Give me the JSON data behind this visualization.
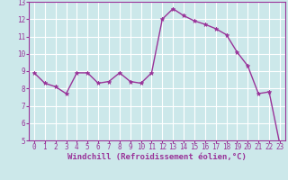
{
  "x": [
    0,
    1,
    2,
    3,
    4,
    5,
    6,
    7,
    8,
    9,
    10,
    11,
    12,
    13,
    14,
    15,
    16,
    17,
    18,
    19,
    20,
    21,
    22,
    23
  ],
  "y": [
    8.9,
    8.3,
    8.1,
    7.7,
    8.9,
    8.9,
    8.3,
    8.4,
    8.9,
    8.4,
    8.3,
    8.9,
    12.0,
    12.6,
    12.2,
    11.9,
    11.7,
    11.45,
    11.1,
    10.1,
    9.3,
    7.7,
    7.8,
    4.8
  ],
  "line_color": "#993399",
  "marker": "*",
  "marker_size": 3.5,
  "bg_color": "#cce8ea",
  "grid_color": "#b0d8dc",
  "xlabel": "Windchill (Refroidissement éolien,°C)",
  "ylim": [
    5,
    13
  ],
  "xlim": [
    -0.5,
    23.5
  ],
  "yticks": [
    5,
    6,
    7,
    8,
    9,
    10,
    11,
    12,
    13
  ],
  "xticks": [
    0,
    1,
    2,
    3,
    4,
    5,
    6,
    7,
    8,
    9,
    10,
    11,
    12,
    13,
    14,
    15,
    16,
    17,
    18,
    19,
    20,
    21,
    22,
    23
  ],
  "tick_label_color": "#993399",
  "tick_label_size": 5.5,
  "xlabel_size": 6.5,
  "xlabel_color": "#993399",
  "line_width": 1.0,
  "spine_color": "#993399"
}
